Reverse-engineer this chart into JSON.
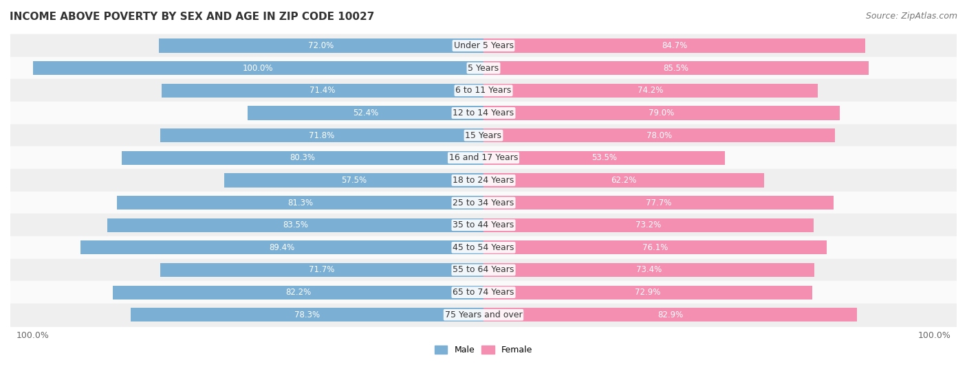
{
  "title": "INCOME ABOVE POVERTY BY SEX AND AGE IN ZIP CODE 10027",
  "source": "Source: ZipAtlas.com",
  "categories": [
    "Under 5 Years",
    "5 Years",
    "6 to 11 Years",
    "12 to 14 Years",
    "15 Years",
    "16 and 17 Years",
    "18 to 24 Years",
    "25 to 34 Years",
    "35 to 44 Years",
    "45 to 54 Years",
    "55 to 64 Years",
    "65 to 74 Years",
    "75 Years and over"
  ],
  "male": [
    72.0,
    100.0,
    71.4,
    52.4,
    71.8,
    80.3,
    57.5,
    81.3,
    83.5,
    89.4,
    71.7,
    82.2,
    78.3
  ],
  "female": [
    84.7,
    85.5,
    74.2,
    79.0,
    78.0,
    53.5,
    62.2,
    77.7,
    73.2,
    76.1,
    73.4,
    72.9,
    82.9
  ],
  "male_color": "#7bafd4",
  "female_color": "#f48fb1",
  "row_bg_odd": "#efefef",
  "row_bg_even": "#fafafa",
  "bar_text_color_inside": "#ffffff",
  "bar_text_color_outside": "#555555",
  "title_fontsize": 11,
  "source_fontsize": 9,
  "cat_label_fontsize": 9,
  "bar_text_fontsize": 8.5,
  "legend_fontsize": 9,
  "figsize": [
    14.06,
    5.59
  ],
  "dpi": 100
}
